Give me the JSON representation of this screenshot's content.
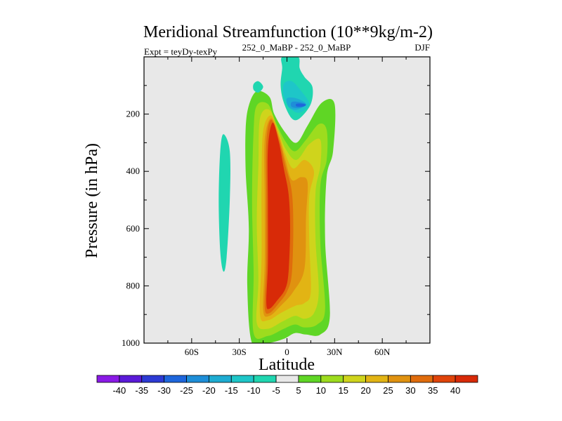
{
  "chart_data": {
    "type": "heatmap",
    "title": "Meridional Streamfunction (10**9kg/m-2)",
    "subtitle_left": "Expt = teyDy-texPy",
    "subtitle_center": "252_0_MaBP - 252_0_MaBP",
    "subtitle_right": "DJF",
    "xlabel": "Latitude",
    "ylabel": "Pressure (in hPa)",
    "xlim": [
      -90,
      90
    ],
    "ylim": [
      1000,
      0
    ],
    "x_ticks": [
      {
        "value": -60,
        "label": "60S"
      },
      {
        "value": -30,
        "label": "30S"
      },
      {
        "value": 0,
        "label": "0"
      },
      {
        "value": 30,
        "label": "30N"
      },
      {
        "value": 60,
        "label": "60N"
      }
    ],
    "y_ticks": [
      {
        "value": 200,
        "label": "200"
      },
      {
        "value": 400,
        "label": "400"
      },
      {
        "value": 600,
        "label": "600"
      },
      {
        "value": 800,
        "label": "800"
      },
      {
        "value": 1000,
        "label": "1000"
      }
    ],
    "plot_background": "#e8e8e8",
    "colorbar": {
      "labels": [
        "-40",
        "-35",
        "-30",
        "-25",
        "-20",
        "-15",
        "-10",
        "-5",
        "5",
        "10",
        "15",
        "20",
        "25",
        "30",
        "35",
        "40"
      ],
      "colors": [
        "#8a1ae6",
        "#5a1ad8",
        "#2c3ad4",
        "#1e66dc",
        "#1e8ed8",
        "#1eacd2",
        "#1ec6c8",
        "#20d6b0",
        "#e8e8e8",
        "#5fd625",
        "#9ddc1e",
        "#cfd41c",
        "#e2b414",
        "#e09210",
        "#e06c0c",
        "#e0440a",
        "#d82a08"
      ]
    },
    "contours": [
      {
        "name": "sh-pos-10",
        "level": 10,
        "color": "#5fd625",
        "points": [
          [
            -22,
            1000
          ],
          [
            -12,
            1000
          ],
          [
            -2,
            985
          ],
          [
            5,
            965
          ],
          [
            12,
            970
          ],
          [
            21,
            970
          ],
          [
            27,
            905
          ],
          [
            24,
            640
          ],
          [
            25,
            420
          ],
          [
            29,
            330
          ],
          [
            30,
            165
          ],
          [
            22,
            160
          ],
          [
            13,
            240
          ],
          [
            6,
            300
          ],
          [
            -1,
            265
          ],
          [
            -8,
            200
          ],
          [
            -11,
            140
          ],
          [
            -19,
            120
          ],
          [
            -24,
            170
          ],
          [
            -26,
            250
          ],
          [
            -26,
            400
          ],
          [
            -24,
            600
          ],
          [
            -25,
            800
          ]
        ]
      },
      {
        "name": "sh-pos-15",
        "level": 15,
        "color": "#9ddc1e",
        "points": [
          [
            -21,
            965
          ],
          [
            -12,
            975
          ],
          [
            -2,
            950
          ],
          [
            5,
            935
          ],
          [
            11,
            945
          ],
          [
            19,
            935
          ],
          [
            24,
            880
          ],
          [
            21,
            650
          ],
          [
            21,
            450
          ],
          [
            25,
            360
          ],
          [
            25,
            255
          ],
          [
            20,
            235
          ],
          [
            12,
            290
          ],
          [
            5,
            330
          ],
          [
            -1,
            295
          ],
          [
            -7,
            230
          ],
          [
            -12,
            165
          ],
          [
            -19,
            170
          ],
          [
            -21,
            260
          ],
          [
            -22,
            500
          ],
          [
            -21,
            750
          ]
        ]
      },
      {
        "name": "sh-pos-20",
        "level": 20,
        "color": "#cfd41c",
        "points": [
          [
            -19,
            930
          ],
          [
            -12,
            950
          ],
          [
            -3,
            925
          ],
          [
            5,
            905
          ],
          [
            11,
            915
          ],
          [
            17,
            895
          ],
          [
            20,
            820
          ],
          [
            18,
            640
          ],
          [
            18,
            470
          ],
          [
            21,
            380
          ],
          [
            21,
            290
          ],
          [
            14,
            305
          ],
          [
            6,
            360
          ],
          [
            -1,
            320
          ],
          [
            -6,
            250
          ],
          [
            -11,
            185
          ],
          [
            -17,
            215
          ],
          [
            -18,
            380
          ],
          [
            -19,
            580
          ],
          [
            -18,
            780
          ]
        ]
      },
      {
        "name": "sh-pos-25",
        "level": 25,
        "color": "#e2b414",
        "points": [
          [
            -17,
            900
          ],
          [
            -12,
            920
          ],
          [
            -4,
            895
          ],
          [
            5,
            870
          ],
          [
            11,
            860
          ],
          [
            15,
            820
          ],
          [
            14,
            640
          ],
          [
            14,
            490
          ],
          [
            17,
            400
          ],
          [
            11,
            360
          ],
          [
            4,
            390
          ],
          [
            -1,
            340
          ],
          [
            -5,
            270
          ],
          [
            -10,
            205
          ],
          [
            -15,
            260
          ],
          [
            -16,
            450
          ],
          [
            -16,
            700
          ]
        ]
      },
      {
        "name": "sh-pos-30",
        "level": 30,
        "color": "#e09210",
        "points": [
          [
            -15,
            885
          ],
          [
            -11,
            905
          ],
          [
            -4,
            870
          ],
          [
            4,
            820
          ],
          [
            11,
            740
          ],
          [
            12,
            560
          ],
          [
            13,
            440
          ],
          [
            9,
            420
          ],
          [
            3,
            430
          ],
          [
            -1,
            360
          ],
          [
            -5,
            280
          ],
          [
            -10,
            215
          ],
          [
            -14,
            290
          ],
          [
            -14,
            500
          ],
          [
            -14,
            720
          ]
        ]
      },
      {
        "name": "sh-pos-35",
        "level": 35,
        "color": "#e06c0c",
        "points": [
          [
            -14,
            875
          ],
          [
            -11,
            895
          ],
          [
            -5,
            860
          ],
          [
            0,
            820
          ],
          [
            3,
            760
          ],
          [
            4,
            600
          ],
          [
            3,
            470
          ],
          [
            -1,
            380
          ],
          [
            -5,
            290
          ],
          [
            -10,
            220
          ],
          [
            -13,
            300
          ],
          [
            -13,
            500
          ],
          [
            -13,
            720
          ]
        ]
      },
      {
        "name": "sh-pos-40",
        "level": 40,
        "color": "#d82a08",
        "points": [
          [
            -13,
            860
          ],
          [
            -11,
            880
          ],
          [
            -6,
            850
          ],
          [
            -1,
            810
          ],
          [
            1,
            750
          ],
          [
            2,
            600
          ],
          [
            1,
            480
          ],
          [
            -2,
            390
          ],
          [
            -5,
            300
          ],
          [
            -9,
            230
          ],
          [
            -12,
            320
          ],
          [
            -12,
            520
          ],
          [
            -12,
            720
          ]
        ]
      },
      {
        "name": "nh-neg-5",
        "level": -5,
        "color": "#20d6b0",
        "points": [
          [
            -3,
            0
          ],
          [
            7,
            0
          ],
          [
            8,
            40
          ],
          [
            11,
            70
          ],
          [
            16,
            105
          ],
          [
            15,
            165
          ],
          [
            8,
            215
          ],
          [
            3,
            215
          ],
          [
            -2,
            160
          ],
          [
            -4,
            100
          ],
          [
            -3,
            40
          ]
        ]
      },
      {
        "name": "nh-neg-10",
        "level": -10,
        "color": "#1ec6c8",
        "points": [
          [
            -2,
            95
          ],
          [
            3,
            85
          ],
          [
            9,
            120
          ],
          [
            14,
            165
          ],
          [
            8,
            195
          ],
          [
            2,
            180
          ],
          [
            -2,
            140
          ]
        ]
      },
      {
        "name": "nh-neg-15",
        "level": -15,
        "color": "#1eacd2",
        "points": [
          [
            0,
            145
          ],
          [
            6,
            145
          ],
          [
            12,
            165
          ],
          [
            6,
            185
          ],
          [
            1,
            175
          ]
        ]
      },
      {
        "name": "nh-neg-20",
        "level": -20,
        "color": "#1e8ed8",
        "points": [
          [
            3,
            158
          ],
          [
            8,
            158
          ],
          [
            12,
            167
          ],
          [
            8,
            178
          ],
          [
            3,
            175
          ]
        ]
      },
      {
        "name": "nh-neg-25",
        "level": -25,
        "color": "#1e66dc",
        "points": [
          [
            6,
            164
          ],
          [
            10,
            164
          ],
          [
            12,
            168
          ],
          [
            10,
            174
          ],
          [
            6,
            173
          ]
        ]
      },
      {
        "name": "sh-neg-a",
        "level": -5,
        "color": "#20d6b0",
        "points": [
          [
            -21,
            95
          ],
          [
            -18,
            85
          ],
          [
            -15,
            105
          ],
          [
            -18,
            125
          ],
          [
            -21,
            115
          ]
        ]
      },
      {
        "name": "sh-neg-b",
        "level": -5,
        "color": "#20d6b0",
        "points": [
          [
            -40,
            270
          ],
          [
            -36,
            330
          ],
          [
            -36,
            500
          ],
          [
            -38,
            700
          ],
          [
            -40,
            750
          ],
          [
            -42,
            680
          ],
          [
            -43,
            500
          ],
          [
            -42,
            330
          ]
        ]
      }
    ]
  }
}
